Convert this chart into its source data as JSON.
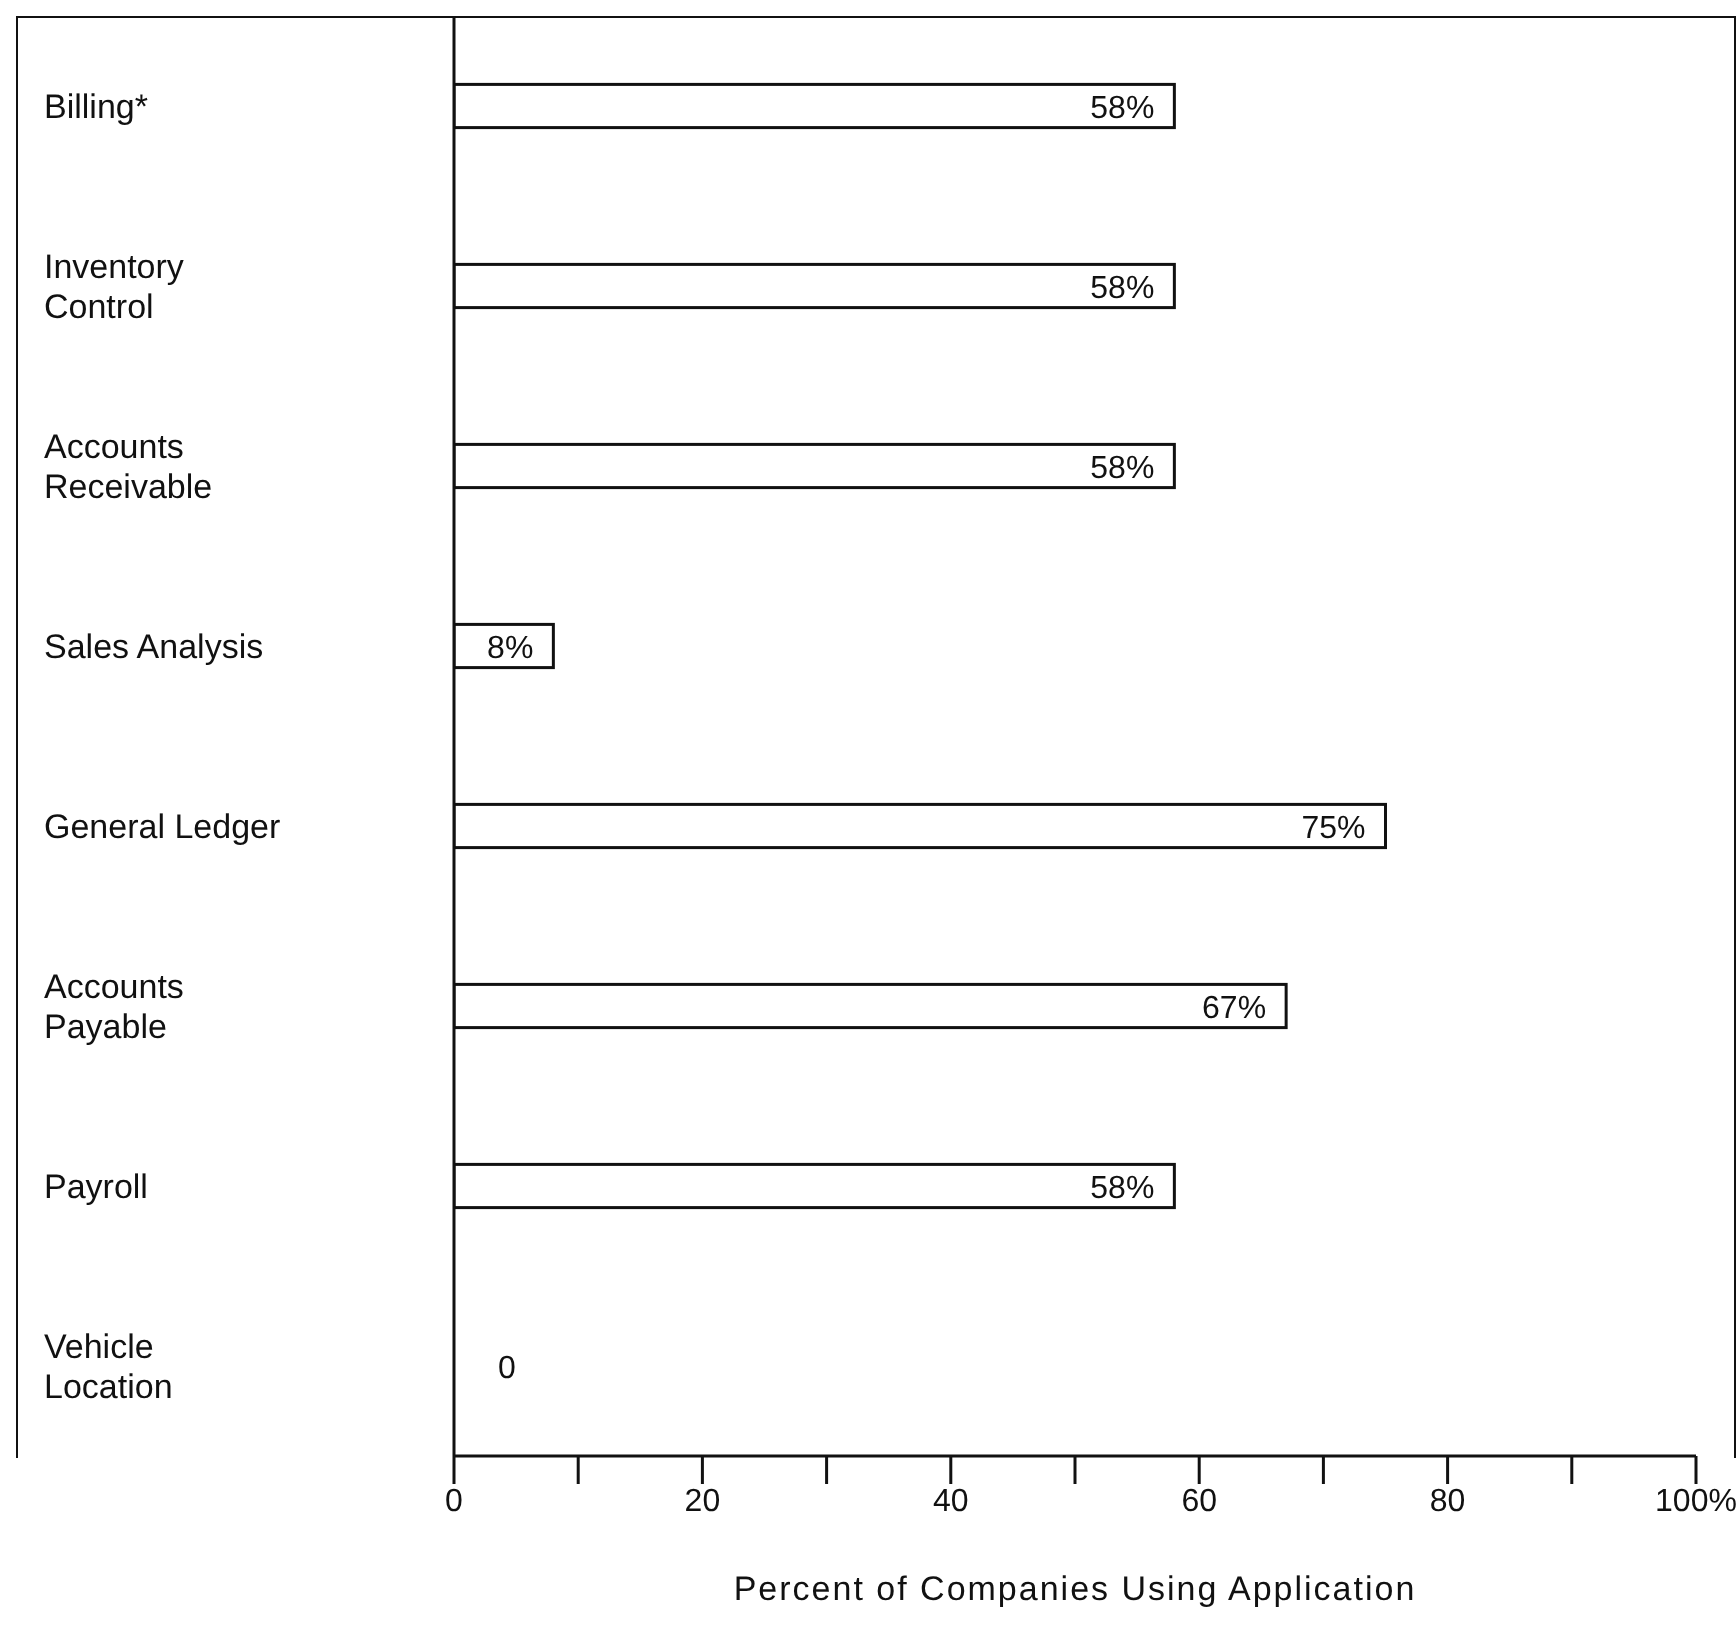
{
  "chart_data": {
    "type": "bar",
    "orientation": "horizontal",
    "xlabel": "Percent of Companies Using Application",
    "categories": [
      "Billing*",
      "Inventory Control",
      "Accounts Receivable",
      "Sales Analysis",
      "General Ledger",
      "Accounts Payable",
      "Payroll",
      "Vehicle Location"
    ],
    "values": [
      58,
      58,
      58,
      8,
      75,
      67,
      58,
      0
    ],
    "value_labels": [
      "58%",
      "58%",
      "58%",
      "8%",
      "75%",
      "67%",
      "58%",
      "0"
    ],
    "color": "#ffffff",
    "xlim": [
      0,
      100
    ],
    "xticks": [
      0,
      {
        "value": 10,
        "label": null
      },
      20,
      {
        "value": 30,
        "label": null
      },
      40,
      {
        "value": 50,
        "label": null
      },
      60,
      {
        "value": 70,
        "label": null
      },
      80,
      {
        "value": 90,
        "label": null
      },
      {
        "value": 100,
        "label": "100%"
      }
    ],
    "grid": false,
    "legend": false
  }
}
